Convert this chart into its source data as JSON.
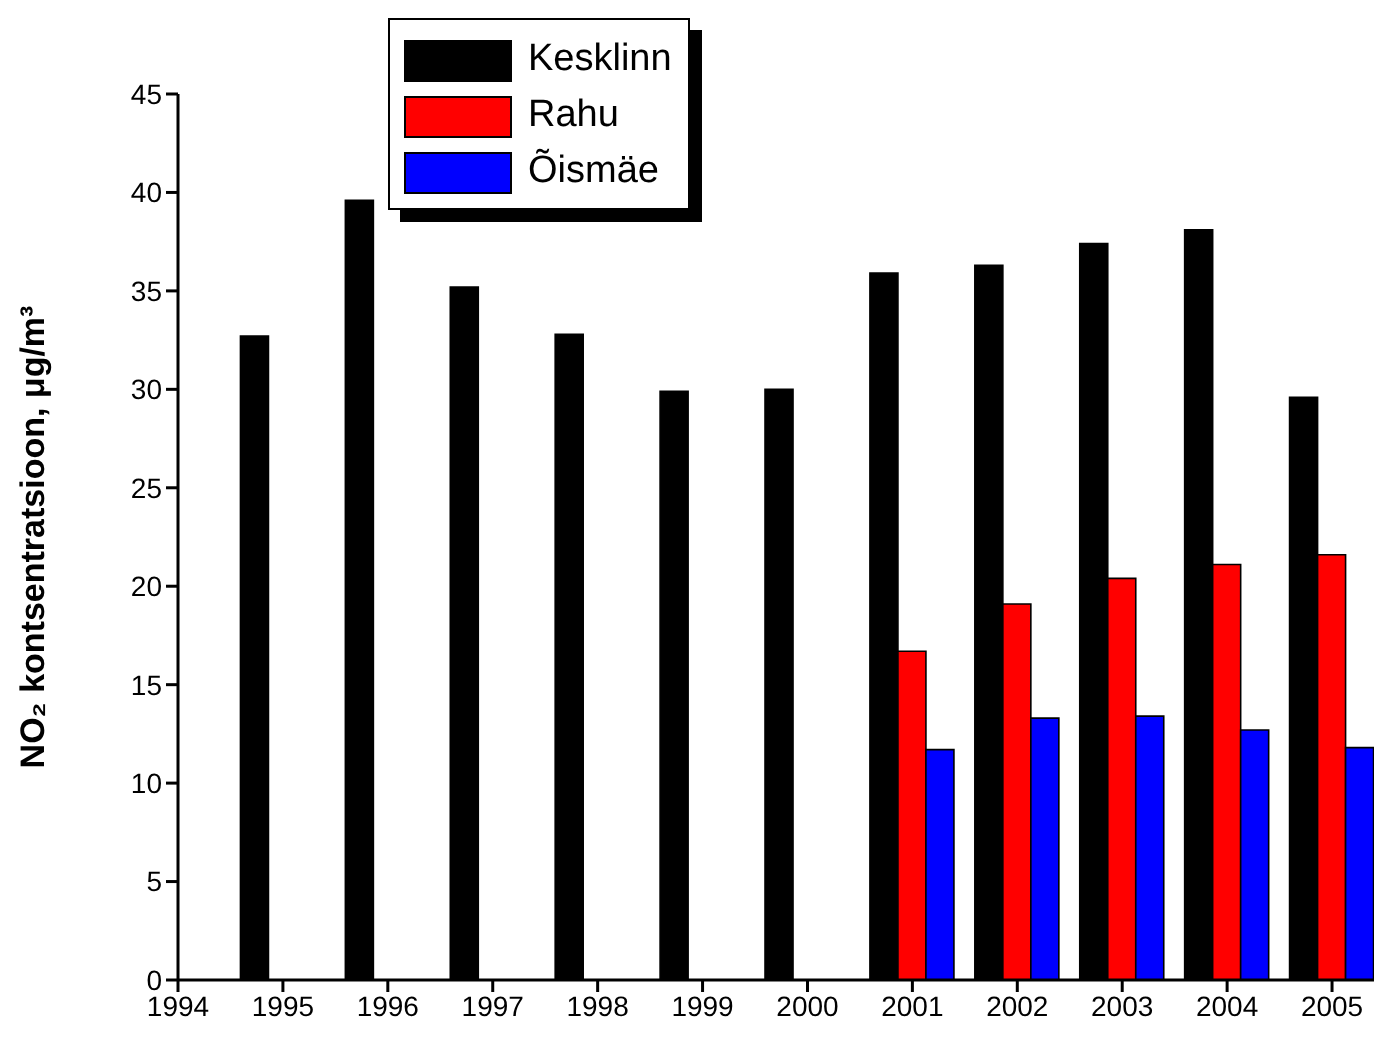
{
  "chart_data": {
    "type": "bar",
    "ylabel": "NO₂ kontsentratsioon, μg/m³",
    "x": [
      1995,
      1996,
      1997,
      1998,
      1999,
      2000,
      2001,
      2002,
      2003,
      2004,
      2005
    ],
    "series": [
      {
        "name": "Kesklinn",
        "color": "#000000",
        "values": [
          32.7,
          39.6,
          35.2,
          32.8,
          29.9,
          30.0,
          35.9,
          36.3,
          37.4,
          38.1,
          29.6
        ]
      },
      {
        "name": "Rahu",
        "color": "#ff0000",
        "values": [
          null,
          null,
          null,
          null,
          null,
          null,
          16.7,
          19.1,
          20.4,
          21.1,
          21.6
        ]
      },
      {
        "name": "Õismäe",
        "color": "#0000ff",
        "values": [
          null,
          null,
          null,
          null,
          null,
          null,
          11.7,
          13.3,
          13.4,
          12.7,
          11.8
        ]
      }
    ],
    "xlim": [
      1994,
      2005.4
    ],
    "xticks": [
      1994,
      1995,
      1996,
      1997,
      1998,
      1999,
      2000,
      2001,
      2002,
      2003,
      2004,
      2005
    ],
    "ylim": [
      0,
      45
    ],
    "yticks": [
      0,
      5,
      10,
      15,
      20,
      25,
      30,
      35,
      40,
      45
    ],
    "grid": false,
    "legend": "top"
  }
}
